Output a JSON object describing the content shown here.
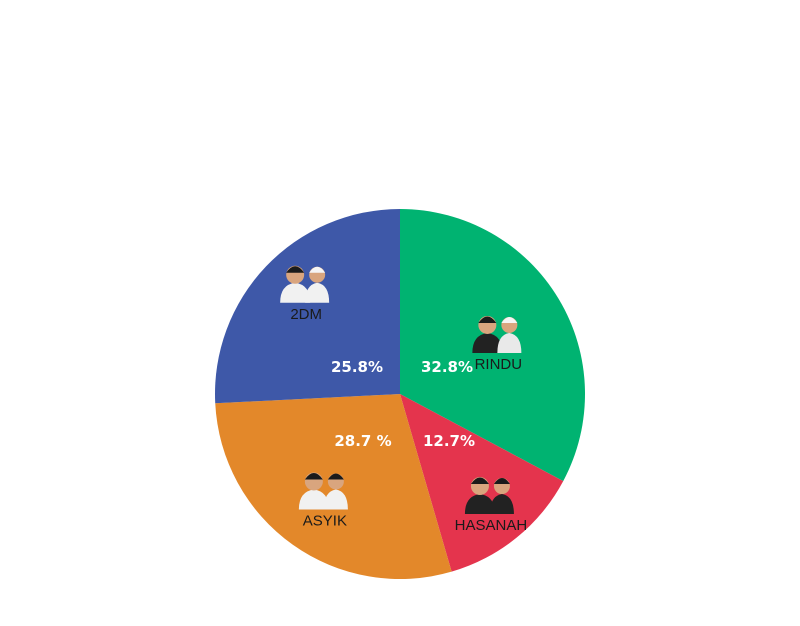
{
  "chart_data": {
    "type": "pie",
    "start": "12 o'clock",
    "direction": "clockwise",
    "slices": [
      {
        "label": "RINDU",
        "value": 32.8,
        "value_label": "32.8%",
        "color": "#00b371",
        "photo_icon": "candidate-pair-photo"
      },
      {
        "label": "HASANAH",
        "value": 12.7,
        "value_label": "12.7%",
        "color": "#e4344d",
        "photo_icon": "candidate-pair-photo"
      },
      {
        "label": "ASYIK",
        "value": 28.7,
        "value_label": "28.7 %",
        "color": "#e3882a",
        "photo_icon": "candidate-pair-photo"
      },
      {
        "label": "2DM",
        "value": 25.8,
        "value_label": "25.8%",
        "color": "#3e58a8",
        "photo_icon": "candidate-pair-photo"
      }
    ]
  }
}
